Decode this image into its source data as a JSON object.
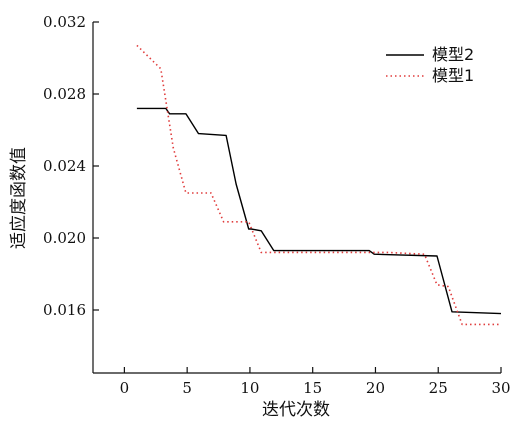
{
  "chart_data": {
    "type": "line",
    "title": "",
    "xlabel": "迭代次数",
    "ylabel": "适应度函数值",
    "xlim": [
      -2.5,
      30
    ],
    "ylim": [
      0.0125,
      0.032
    ],
    "x_ticks": [
      0,
      5,
      10,
      15,
      20,
      25,
      30
    ],
    "x_tick_labels": [
      "0",
      "5",
      "10",
      "15",
      "20",
      "25",
      "30"
    ],
    "y_ticks": [
      0.016,
      0.02,
      0.024,
      0.028,
      0.032
    ],
    "y_tick_labels": [
      "0.016",
      "0.020",
      "0.024",
      "0.028",
      "0.032"
    ],
    "grid": false,
    "legend_position": "top-right",
    "series": [
      {
        "name": "模型2",
        "color": "#000000",
        "style": "solid",
        "x": [
          1,
          3.3,
          3.6,
          4.9,
          5.9,
          8.1,
          8.9,
          9.9,
          10.1,
          10.9,
          11.9,
          19.5,
          19.9,
          24.9,
          26.1,
          30
        ],
        "y": [
          0.0272,
          0.0272,
          0.0269,
          0.0269,
          0.0258,
          0.0257,
          0.023,
          0.0205,
          0.0205,
          0.0204,
          0.0193,
          0.0193,
          0.0191,
          0.019,
          0.0159,
          0.0158
        ]
      },
      {
        "name": "模型1",
        "color": "#e03c3c",
        "style": "dotted",
        "x": [
          1,
          2.9,
          3.9,
          4.9,
          6.9,
          7.9,
          9.9,
          10.9,
          20.9,
          23.9,
          24.9,
          25.8,
          26.9,
          30
        ],
        "y": [
          0.0307,
          0.0294,
          0.025,
          0.0225,
          0.0225,
          0.0209,
          0.0209,
          0.0192,
          0.0192,
          0.0191,
          0.0174,
          0.0173,
          0.0152,
          0.0152
        ]
      }
    ]
  }
}
